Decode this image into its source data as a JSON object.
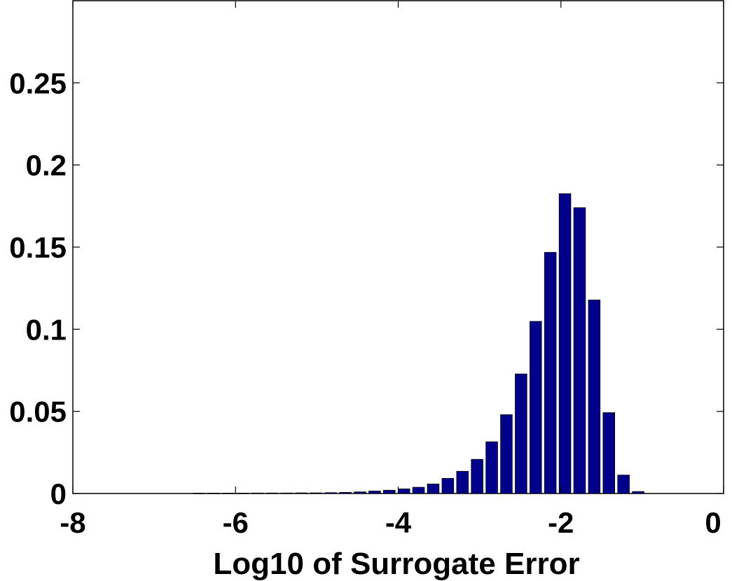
{
  "chart_data": {
    "type": "bar",
    "title": "",
    "xlabel": "Log10 of Surrogate Error",
    "ylabel": "",
    "xlim": [
      -8,
      0
    ],
    "ylim": [
      0,
      0.3
    ],
    "x_ticks": [
      "-8",
      "-6",
      "-4",
      "-2",
      "0"
    ],
    "y_ticks": [
      "0",
      "0.05",
      "0.1",
      "0.15",
      "0.2",
      "0.25"
    ],
    "bar_color": "#00008b",
    "grid": false,
    "x": [
      -6.45,
      -6.27,
      -6.09,
      -5.91,
      -5.73,
      -5.55,
      -5.37,
      -5.19,
      -5.01,
      -4.83,
      -4.65,
      -4.47,
      -4.29,
      -4.11,
      -3.93,
      -3.75,
      -3.57,
      -3.39,
      -3.21,
      -3.03,
      -2.85,
      -2.67,
      -2.49,
      -2.31,
      -2.13,
      -1.95,
      -1.77,
      -1.59,
      -1.41,
      -1.23,
      -1.05
    ],
    "values": [
      0.0002,
      0.0002,
      0.0002,
      0.0002,
      0.0003,
      0.0003,
      0.0003,
      0.0004,
      0.0004,
      0.0005,
      0.0007,
      0.001,
      0.0015,
      0.002,
      0.0028,
      0.0038,
      0.0058,
      0.0092,
      0.0135,
      0.0208,
      0.0315,
      0.048,
      0.0728,
      0.1048,
      0.1468,
      0.1825,
      0.174,
      0.1178,
      0.0492,
      0.0112,
      0.0012
    ]
  }
}
